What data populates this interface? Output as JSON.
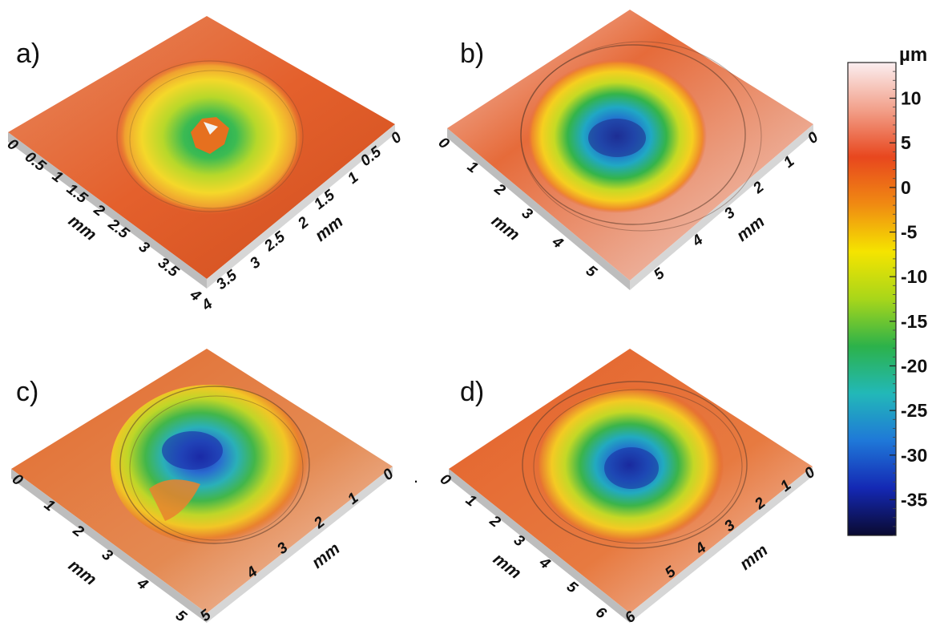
{
  "panels": [
    {
      "label": "a)",
      "axis_unit": "mm",
      "left_ticks": [
        "0",
        "0.5",
        "1",
        "1.5",
        "2",
        "2.5",
        "3",
        "3.5",
        "4"
      ],
      "right_ticks": [
        "4",
        "3.5",
        "3",
        "2.5",
        "2",
        "1.5",
        "1",
        "0.5",
        "0"
      ],
      "description_colors": {
        "surface": "#e8652c",
        "center": "#2fb36c"
      }
    },
    {
      "label": "b)",
      "axis_unit": "mm",
      "left_ticks": [
        "0",
        "1",
        "2",
        "3",
        "4",
        "5"
      ],
      "right_ticks": [
        "5",
        "4",
        "3",
        "2",
        "1",
        "0"
      ]
    },
    {
      "label": "c)",
      "axis_unit": "mm",
      "left_ticks": [
        "0",
        "1",
        "2",
        "3",
        "4",
        "5"
      ],
      "right_ticks": [
        "5",
        "4",
        "3",
        "2",
        "1",
        "0"
      ]
    },
    {
      "label": "d)",
      "axis_unit": "mm",
      "left_ticks": [
        "0",
        "1",
        "2",
        "3",
        "4",
        "5",
        "6"
      ],
      "right_ticks": [
        "6",
        "5",
        "4",
        "3",
        "2",
        "1",
        "0"
      ]
    }
  ],
  "stray_mark": ".",
  "colorbar": {
    "unit": "µm",
    "ticks": [
      "10",
      "5",
      "0",
      "-5",
      "-10",
      "-15",
      "-20",
      "-25",
      "-30",
      "-35"
    ],
    "range": [
      -39,
      14
    ],
    "gradient": [
      "#fbeef0",
      "#f2a08a",
      "#e8471e",
      "#f08a12",
      "#f5e400",
      "#a8d61a",
      "#2cb24a",
      "#22b8b8",
      "#1f78d8",
      "#1428b4",
      "#0a0a30"
    ]
  }
}
